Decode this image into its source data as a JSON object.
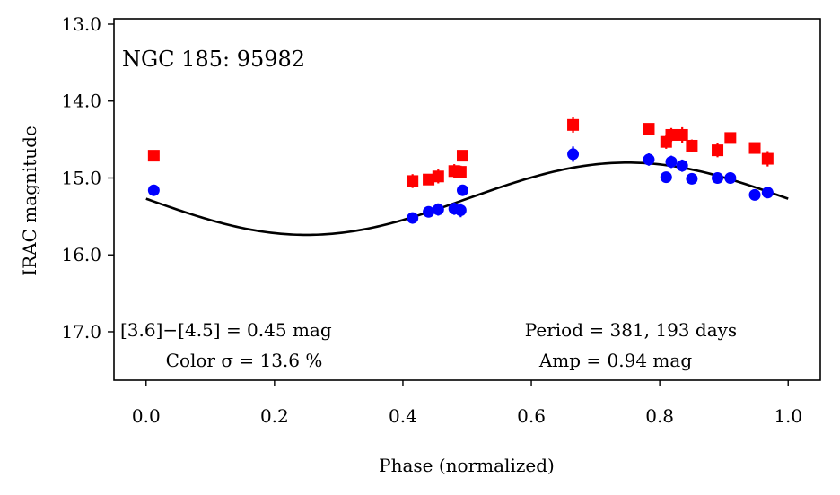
{
  "chart_data": {
    "type": "scatter",
    "title": "NGC 185:  95982",
    "xlabel": "Phase (normalized)",
    "ylabel": "IRAC magnitude",
    "xlim": [
      -0.05,
      1.05
    ],
    "ylim": [
      17.63,
      12.93
    ],
    "y_inverted": true,
    "grid": false,
    "x_ticks": [
      0.0,
      0.2,
      0.4,
      0.6,
      0.8,
      1.0
    ],
    "x_tick_labels": [
      "0.0",
      "0.2",
      "0.4",
      "0.6",
      "0.8",
      "1.0"
    ],
    "y_ticks": [
      13.0,
      14.0,
      15.0,
      16.0,
      17.0
    ],
    "y_tick_labels": [
      "13.0",
      "14.0",
      "15.0",
      "16.0",
      "17.0"
    ],
    "series": [
      {
        "marker": "square",
        "color": "#ff0000",
        "points": [
          {
            "x": 0.012,
            "y": 14.71,
            "err": 0.05
          },
          {
            "x": 0.415,
            "y": 15.04,
            "err": 0.09
          },
          {
            "x": 0.44,
            "y": 15.02,
            "err": 0.07
          },
          {
            "x": 0.455,
            "y": 14.98,
            "err": 0.09
          },
          {
            "x": 0.48,
            "y": 14.91,
            "err": 0.09
          },
          {
            "x": 0.49,
            "y": 14.92,
            "err": 0.08
          },
          {
            "x": 0.493,
            "y": 14.71,
            "err": 0.07
          },
          {
            "x": 0.665,
            "y": 14.31,
            "err": 0.1
          },
          {
            "x": 0.783,
            "y": 14.36,
            "err": 0.07
          },
          {
            "x": 0.81,
            "y": 14.53,
            "err": 0.09
          },
          {
            "x": 0.818,
            "y": 14.44,
            "err": 0.09
          },
          {
            "x": 0.835,
            "y": 14.44,
            "err": 0.1
          },
          {
            "x": 0.85,
            "y": 14.58,
            "err": 0.08
          },
          {
            "x": 0.89,
            "y": 14.64,
            "err": 0.09
          },
          {
            "x": 0.91,
            "y": 14.48,
            "err": 0.07
          },
          {
            "x": 0.948,
            "y": 14.61,
            "err": 0.06
          },
          {
            "x": 0.968,
            "y": 14.75,
            "err": 0.1
          }
        ]
      },
      {
        "marker": "circle",
        "color": "#0000ff",
        "points": [
          {
            "x": 0.012,
            "y": 15.16,
            "err": 0.04
          },
          {
            "x": 0.415,
            "y": 15.52,
            "err": 0.07
          },
          {
            "x": 0.44,
            "y": 15.44,
            "err": 0.06
          },
          {
            "x": 0.455,
            "y": 15.41,
            "err": 0.08
          },
          {
            "x": 0.48,
            "y": 15.4,
            "err": 0.08
          },
          {
            "x": 0.49,
            "y": 15.42,
            "err": 0.09
          },
          {
            "x": 0.493,
            "y": 15.16,
            "err": 0.06
          },
          {
            "x": 0.665,
            "y": 14.69,
            "err": 0.1
          },
          {
            "x": 0.783,
            "y": 14.76,
            "err": 0.08
          },
          {
            "x": 0.81,
            "y": 14.99,
            "err": 0.05
          },
          {
            "x": 0.818,
            "y": 14.79,
            "err": 0.08
          },
          {
            "x": 0.835,
            "y": 14.84,
            "err": 0.08
          },
          {
            "x": 0.85,
            "y": 15.01,
            "err": 0.05
          },
          {
            "x": 0.89,
            "y": 15.0,
            "err": 0.07
          },
          {
            "x": 0.91,
            "y": 15.0,
            "err": 0.06
          },
          {
            "x": 0.948,
            "y": 15.22,
            "err": 0.05
          },
          {
            "x": 0.968,
            "y": 15.19,
            "err": 0.06
          }
        ]
      }
    ],
    "model": {
      "type": "sinusoid",
      "color": "#000000",
      "mean": 15.27,
      "amplitude": 0.47,
      "x_range": [
        0.0,
        1.0
      ]
    },
    "annotations": {
      "color": "[3.6]−[4.5] = 0.45 mag",
      "color_sigma": "Color σ = 13.6 %",
      "period": "Period = 381, 193 days",
      "amp": "Amp = 0.94 mag"
    }
  }
}
